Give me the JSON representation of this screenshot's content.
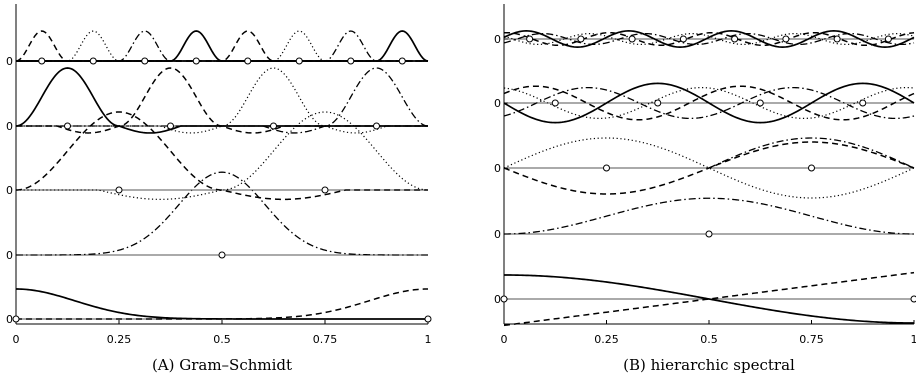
{
  "chart_data": [
    {
      "type": "line",
      "caption": "(A) Gram–Schmidt",
      "x_ticks": [
        "0",
        "0.25",
        "0.5",
        "0.75",
        "1"
      ],
      "xlim": [
        0,
        1
      ],
      "row_labels": [
        "0",
        "0",
        "0",
        "0",
        "0"
      ],
      "rows": [
        {
          "nodes": [
            0,
            1
          ],
          "series": [
            {
              "style": "solid",
              "kind": "gauss",
              "center": 0,
              "width": 0.3,
              "amp": 0.6,
              "offset": 0.02
            },
            {
              "style": "dashed",
              "kind": "gauss",
              "center": 1,
              "width": 0.3,
              "amp": 0.6,
              "offset": 0.02
            }
          ]
        },
        {
          "nodes": [
            0.5
          ],
          "series": [
            {
              "style": "dashdot",
              "kind": "gauss",
              "center": 0.5,
              "width": 0.22,
              "amp": 0.72,
              "offset": 0
            }
          ]
        },
        {
          "nodes": [
            0.25,
            0.75
          ],
          "series": [
            {
              "style": "dashed",
              "kind": "hump",
              "center": 0.25,
              "width": 0.25,
              "amp": 1.0,
              "neg": -0.12
            },
            {
              "style": "dotted",
              "kind": "hump",
              "center": 0.75,
              "width": 0.25,
              "amp": 1.0,
              "neg": -0.12
            }
          ]
        },
        {
          "nodes": [
            0.125,
            0.375,
            0.625,
            0.875
          ],
          "series": [
            {
              "style": "solid",
              "kind": "hump",
              "center": 0.125,
              "width": 0.125,
              "amp": 1.0,
              "neg": -0.12
            },
            {
              "style": "dashed",
              "kind": "hump",
              "center": 0.375,
              "width": 0.125,
              "amp": 1.0,
              "neg": -0.12
            },
            {
              "style": "dotted",
              "kind": "hump",
              "center": 0.625,
              "width": 0.125,
              "amp": 1.0,
              "neg": -0.12
            },
            {
              "style": "dashdot",
              "kind": "hump",
              "center": 0.875,
              "width": 0.125,
              "amp": 1.0,
              "neg": -0.12
            }
          ]
        },
        {
          "nodes": [
            0.0625,
            0.1875,
            0.3125,
            0.4375,
            0.5625,
            0.6875,
            0.8125,
            0.9375
          ],
          "series": [
            {
              "style": "dashed",
              "kind": "hump",
              "center": 0.0625,
              "width": 0.0625,
              "amp": 1.0,
              "neg": 0
            },
            {
              "style": "dotted",
              "kind": "hump",
              "center": 0.1875,
              "width": 0.0625,
              "amp": 1.0,
              "neg": 0
            },
            {
              "style": "dashdot",
              "kind": "hump",
              "center": 0.3125,
              "width": 0.0625,
              "amp": 1.0,
              "neg": 0
            },
            {
              "style": "solid",
              "kind": "hump",
              "center": 0.4375,
              "width": 0.0625,
              "amp": 1.0,
              "neg": 0
            },
            {
              "style": "dashed",
              "kind": "hump",
              "center": 0.5625,
              "width": 0.0625,
              "amp": 1.0,
              "neg": 0
            },
            {
              "style": "dotted",
              "kind": "hump",
              "center": 0.6875,
              "width": 0.0625,
              "amp": 1.0,
              "neg": 0
            },
            {
              "style": "dashdot",
              "kind": "hump",
              "center": 0.8125,
              "width": 0.0625,
              "amp": 1.0,
              "neg": 0
            },
            {
              "style": "solid",
              "kind": "hump",
              "center": 0.9375,
              "width": 0.0625,
              "amp": 1.0,
              "neg": 0
            }
          ]
        }
      ]
    },
    {
      "type": "line",
      "caption": "(B) hierarchic spectral",
      "x_ticks": [
        "0",
        "0.25",
        "0.5",
        "0.75",
        "1"
      ],
      "xlim": [
        0,
        1
      ],
      "row_labels": [
        "0",
        "0",
        "0",
        "0",
        "0"
      ],
      "rows": [
        {
          "nodes": [
            0,
            1
          ],
          "series": [
            {
              "style": "solid",
              "kind": "cos",
              "freq": 1,
              "phase": 0,
              "amp": 0.5
            },
            {
              "style": "dashed",
              "kind": "lin",
              "amp": 0.55
            }
          ]
        },
        {
          "nodes": [
            0.5
          ],
          "series": [
            {
              "style": "dashdot",
              "kind": "tri",
              "center": 0.5,
              "amp": 0.65
            }
          ]
        },
        {
          "nodes": [
            0.25,
            0.75
          ],
          "series": [
            {
              "style": "dotted",
              "kind": "sin",
              "freq": 1,
              "phase": 0,
              "amp": 0.75
            },
            {
              "style": "dashed",
              "kind": "sin",
              "freq": 1,
              "phase": 3.14159,
              "amp": 0.65
            },
            {
              "style": "dashdot",
              "kind": "sin",
              "freq": 1,
              "phase": 3.14159,
              "amp": 0.75,
              "half": "right"
            }
          ]
        },
        {
          "nodes": [
            0.125,
            0.375,
            0.625,
            0.875
          ],
          "series": [
            {
              "style": "solid",
              "kind": "sin",
              "freq": 2,
              "phase": 3.14159,
              "amp": 0.7
            },
            {
              "style": "dashed",
              "kind": "sin",
              "freq": 2,
              "phase": 0.6,
              "amp": 0.6
            },
            {
              "style": "dotted",
              "kind": "sin",
              "freq": 2,
              "phase": 1.8,
              "amp": 0.55
            },
            {
              "style": "dashdot",
              "kind": "sin",
              "freq": 2,
              "phase": -1.0,
              "amp": 0.55
            }
          ]
        },
        {
          "nodes": [
            0.0625,
            0.1875,
            0.3125,
            0.4375,
            0.5625,
            0.6875,
            0.8125,
            0.9375
          ],
          "series": [
            {
              "style": "solid",
              "kind": "sin",
              "freq": 4,
              "phase": 0.2,
              "amp": 0.45
            },
            {
              "style": "dashed",
              "kind": "sin",
              "freq": 4,
              "phase": 1.4,
              "amp": 0.35
            },
            {
              "style": "dotted",
              "kind": "sin",
              "freq": 4,
              "phase": 2.6,
              "amp": 0.3
            },
            {
              "style": "dashdot",
              "kind": "sin",
              "freq": 4,
              "phase": -0.8,
              "amp": 0.3
            }
          ]
        }
      ]
    }
  ]
}
